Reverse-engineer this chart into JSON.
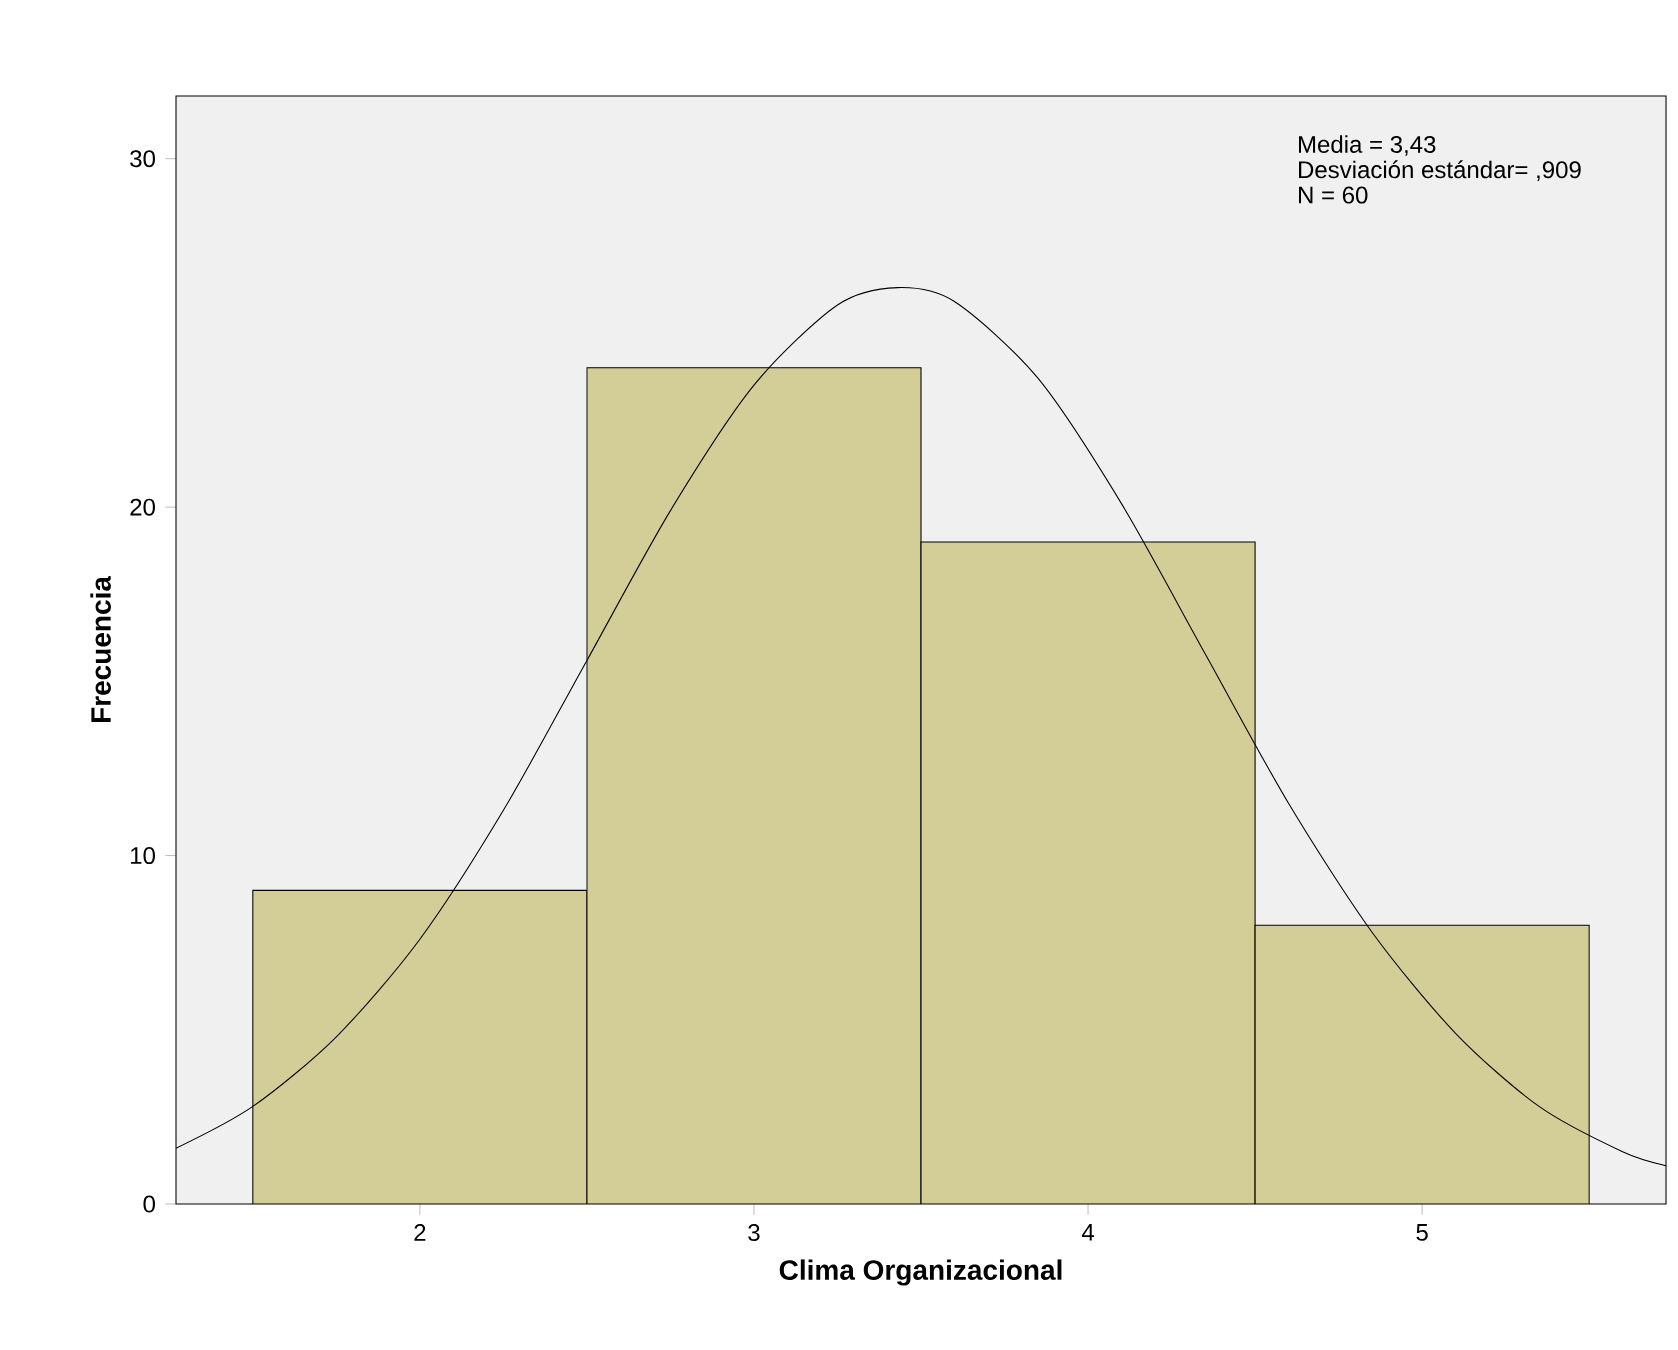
{
  "chart_data": {
    "type": "histogram",
    "xlabel": "Clima Organizacional",
    "ylabel": "Frecuencia",
    "annotations": [
      "Media = 3,43",
      "Desviación estándar= ,909",
      "N = 60"
    ],
    "bins": [
      1.5,
      2.5,
      3.5,
      4.5,
      5.5
    ],
    "series": [
      {
        "color": "#d3ce98",
        "values": [
          9,
          24,
          19,
          8
        ]
      },
      {
        "type": "line",
        "color": "#000000",
        "x": [
          1.27,
          1.5,
          1.75,
          2.0,
          2.25,
          2.5,
          2.75,
          3.0,
          3.25,
          3.43,
          3.6,
          3.85,
          4.1,
          4.35,
          4.6,
          4.85,
          5.1,
          5.35,
          5.6,
          5.73
        ],
        "values": [
          1.6,
          2.8,
          4.8,
          7.6,
          11.3,
          15.6,
          19.9,
          23.5,
          25.8,
          26.3,
          25.9,
          23.7,
          20.1,
          15.8,
          11.5,
          7.8,
          4.9,
          2.8,
          1.5,
          1.1
        ]
      }
    ],
    "xlim": [
      1.27,
      5.73
    ],
    "ylim": [
      0,
      31.8
    ],
    "xticks": [
      2,
      3,
      4,
      5
    ],
    "yticks": [
      0,
      10,
      20,
      30
    ]
  }
}
